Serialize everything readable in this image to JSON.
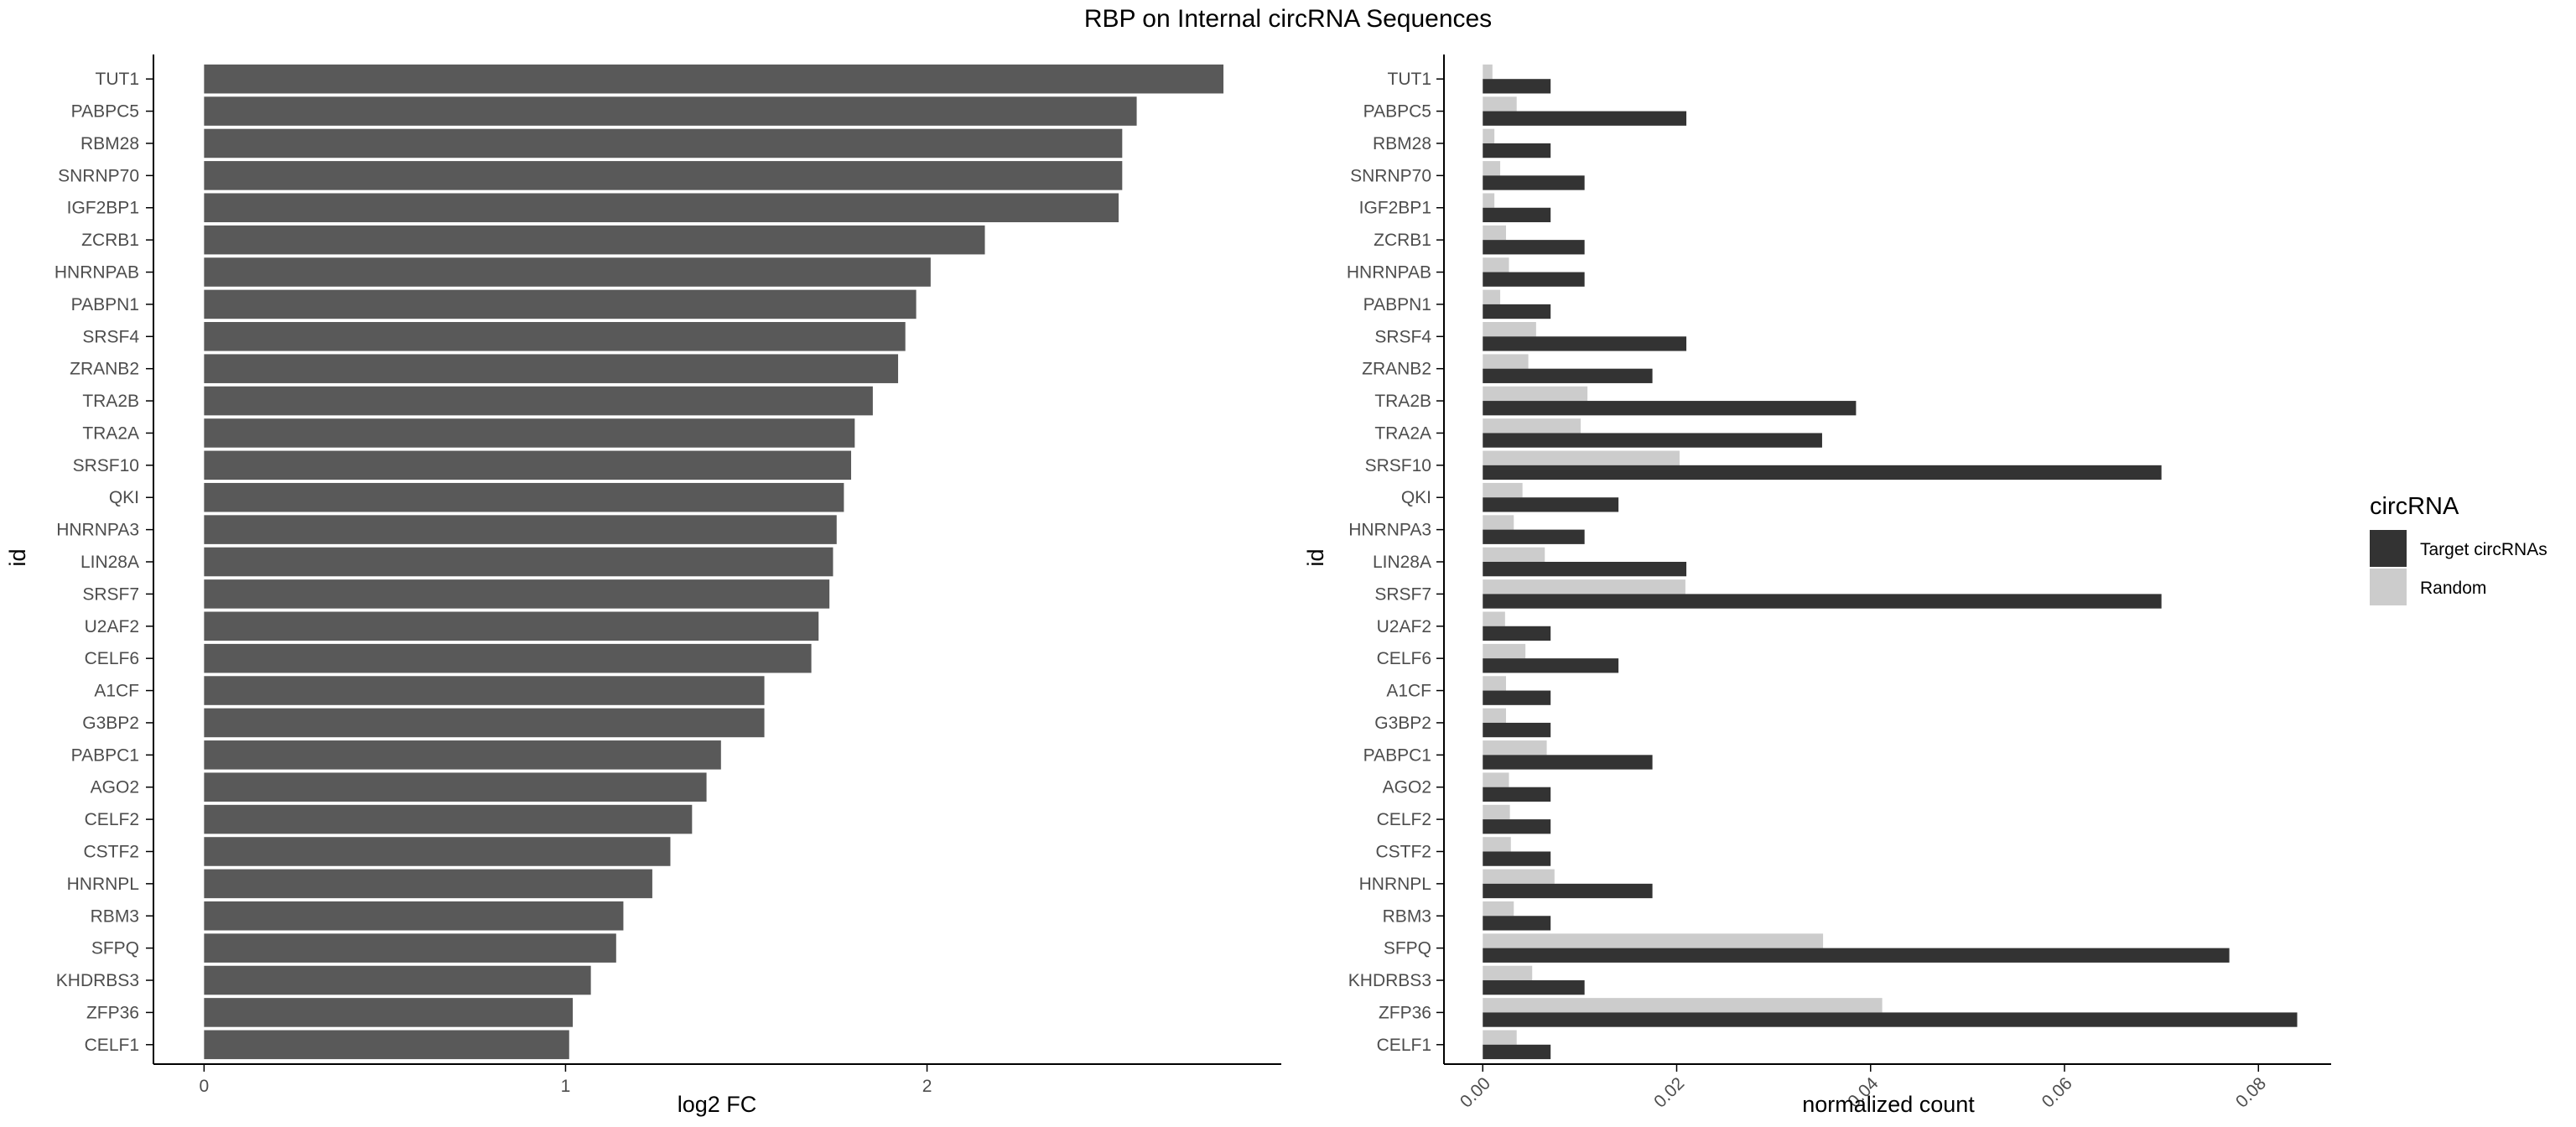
{
  "colors": {
    "bar_single": "#595959",
    "target": "#333333",
    "random": "#cccccc",
    "axis": "#000000"
  },
  "chart_data": [
    {
      "type": "bar",
      "orientation": "horizontal",
      "title": "RBP on Internal circRNA Sequences",
      "ylabel": "id",
      "xlabel": "log2 FC",
      "xlim": [
        -0.14,
        2.98
      ],
      "xticks": [
        0,
        1,
        2
      ],
      "categories": [
        "TUT1",
        "PABPC5",
        "RBM28",
        "SNRNP70",
        "IGF2BP1",
        "ZCRB1",
        "HNRNPAB",
        "PABPN1",
        "SRSF4",
        "ZRANB2",
        "TRA2B",
        "TRA2A",
        "SRSF10",
        "QKI",
        "HNRNPA3",
        "LIN28A",
        "SRSF7",
        "U2AF2",
        "CELF6",
        "A1CF",
        "G3BP2",
        "PABPC1",
        "AGO2",
        "CELF2",
        "CSTF2",
        "HNRNPL",
        "RBM3",
        "SFPQ",
        "KHDRBS3",
        "ZFP36",
        "CELF1"
      ],
      "values": [
        2.82,
        2.58,
        2.54,
        2.54,
        2.53,
        2.16,
        2.01,
        1.97,
        1.94,
        1.92,
        1.85,
        1.8,
        1.79,
        1.77,
        1.75,
        1.74,
        1.73,
        1.7,
        1.68,
        1.55,
        1.55,
        1.43,
        1.39,
        1.35,
        1.29,
        1.24,
        1.16,
        1.14,
        1.07,
        1.02,
        1.01
      ]
    },
    {
      "type": "bar",
      "orientation": "horizontal",
      "grouped": true,
      "ylabel": "id",
      "xlabel": "normalized count",
      "xlim": [
        -0.004,
        0.0875
      ],
      "xticks": [
        "0.00",
        "0.02",
        "0.04",
        "0.06",
        "0.08"
      ],
      "legend": {
        "title": "circRNA",
        "position": "right"
      },
      "categories": [
        "TUT1",
        "PABPC5",
        "RBM28",
        "SNRNP70",
        "IGF2BP1",
        "ZCRB1",
        "HNRNPAB",
        "PABPN1",
        "SRSF4",
        "ZRANB2",
        "TRA2B",
        "TRA2A",
        "SRSF10",
        "QKI",
        "HNRNPA3",
        "LIN28A",
        "SRSF7",
        "U2AF2",
        "CELF6",
        "A1CF",
        "G3BP2",
        "PABPC1",
        "AGO2",
        "CELF2",
        "CSTF2",
        "HNRNPL",
        "RBM3",
        "SFPQ",
        "KHDRBS3",
        "ZFP36",
        "CELF1"
      ],
      "series": [
        {
          "name": "Target circRNAs",
          "values": [
            0.007,
            0.021,
            0.007,
            0.0105,
            0.007,
            0.0105,
            0.0105,
            0.007,
            0.021,
            0.0175,
            0.0385,
            0.035,
            0.07,
            0.014,
            0.0105,
            0.021,
            0.07,
            0.007,
            0.014,
            0.007,
            0.007,
            0.0175,
            0.007,
            0.007,
            0.007,
            0.0175,
            0.007,
            0.077,
            0.0105,
            0.084,
            0.007
          ]
        },
        {
          "name": "Random",
          "values": [
            0.001,
            0.0035,
            0.0012,
            0.0018,
            0.0012,
            0.0024,
            0.0027,
            0.0018,
            0.0055,
            0.0047,
            0.0108,
            0.0101,
            0.0203,
            0.0041,
            0.0032,
            0.0064,
            0.0209,
            0.0023,
            0.0044,
            0.0024,
            0.0024,
            0.0066,
            0.0027,
            0.0028,
            0.0029,
            0.0074,
            0.0032,
            0.0351,
            0.0051,
            0.0412,
            0.0035
          ]
        }
      ]
    }
  ]
}
